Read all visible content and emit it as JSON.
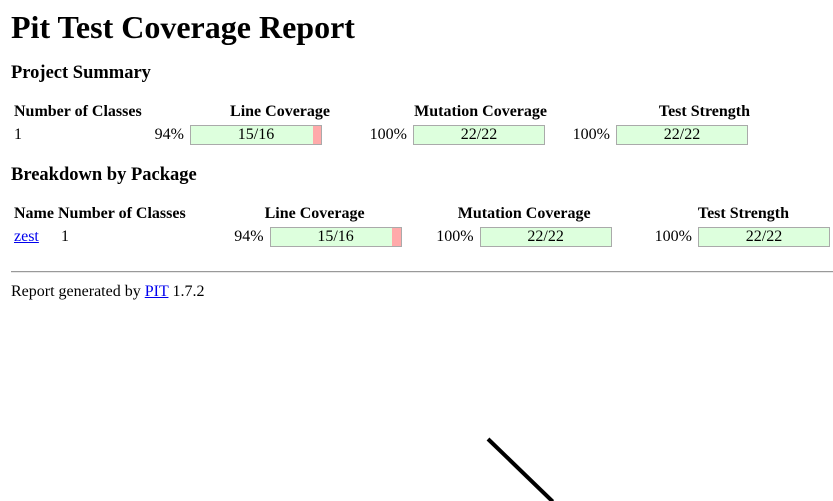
{
  "title": "Pit Test Coverage Report",
  "project_summary": {
    "heading": "Project Summary",
    "headers": {
      "classes": "Number of Classes",
      "line": "Line Coverage",
      "mutation": "Mutation Coverage",
      "strength": "Test Strength"
    },
    "row": {
      "classes": "1",
      "line_pct": "94%",
      "line_legend": "15/16",
      "line_fraction": 0.9375,
      "mutation_pct": "100%",
      "mutation_legend": "22/22",
      "mutation_fraction": 1.0,
      "strength_pct": "100%",
      "strength_legend": "22/22",
      "strength_fraction": 1.0
    }
  },
  "breakdown": {
    "heading": "Breakdown by Package",
    "headers": {
      "name": "Name",
      "classes": "Number of Classes",
      "line": "Line Coverage",
      "mutation": "Mutation Coverage",
      "strength": "Test Strength"
    },
    "rows": [
      {
        "name": "zest",
        "classes": "1",
        "line_pct": "94%",
        "line_legend": "15/16",
        "line_fraction": 0.9375,
        "mutation_pct": "100%",
        "mutation_legend": "22/22",
        "mutation_fraction": 1.0,
        "strength_pct": "100%",
        "strength_legend": "22/22",
        "strength_fraction": 1.0
      }
    ]
  },
  "footer": {
    "prefix": "Report generated by",
    "link": "PIT",
    "version": "1.7.2"
  },
  "colors": {
    "covered": "#ddffdd",
    "uncovered": "#ffaaaa",
    "link": "#0000ee"
  }
}
